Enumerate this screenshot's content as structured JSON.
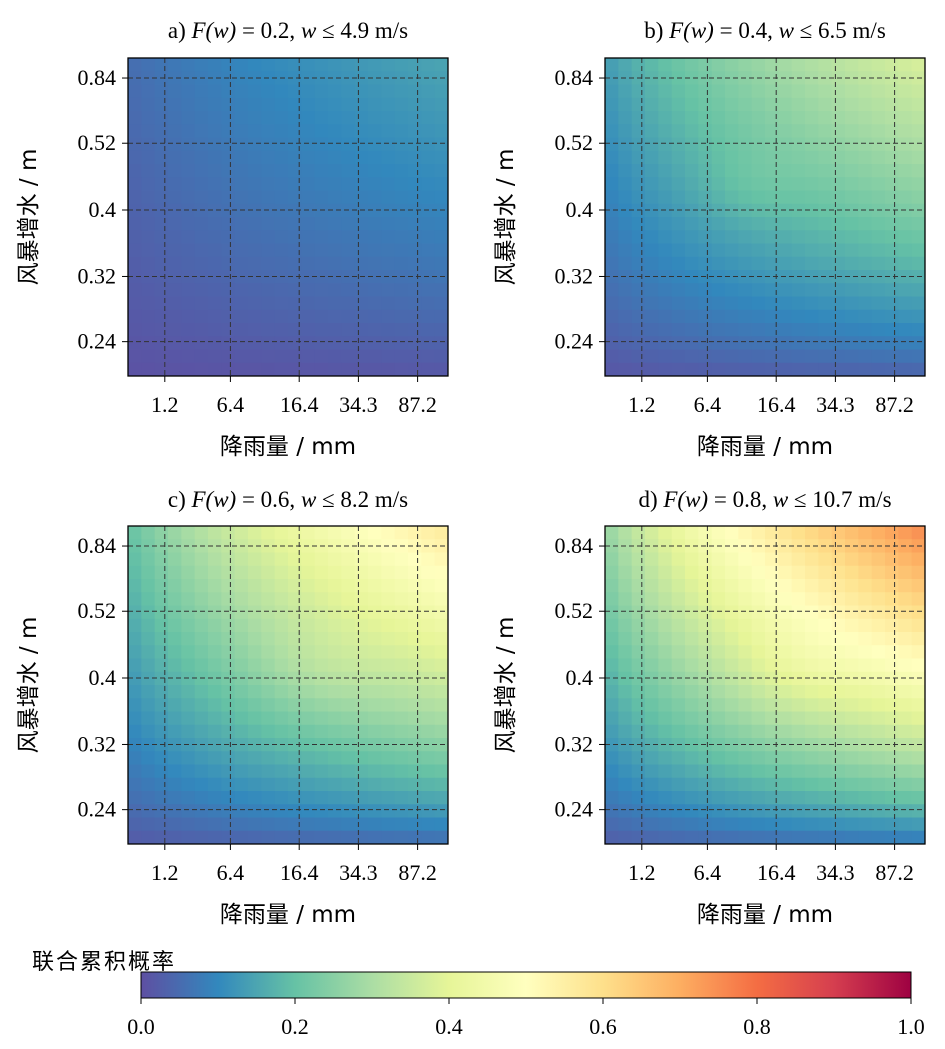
{
  "colorbar": {
    "label": "联合累积概率",
    "ticks": [
      "0.0",
      "0.2",
      "0.4",
      "0.6",
      "0.8",
      "1.0"
    ],
    "range": [
      0,
      1
    ],
    "colormap": [
      "#5e4fa2",
      "#3288bd",
      "#66c2a5",
      "#abdda4",
      "#e6f598",
      "#ffffbf",
      "#fee08b",
      "#fdae61",
      "#f46d43",
      "#d53e4f",
      "#9e0142"
    ]
  },
  "chart_data": [
    {
      "type": "heatmap",
      "panel": "a)",
      "title": "a) F(w) = 0.2, w ≤ 4.9 m/s",
      "title_parts": {
        "prefix": "a) ",
        "fw": "F(w)",
        "eq": " = 0.2, ",
        "w": "w",
        "rest": " ≤ 4.9 m/s"
      },
      "xlabel": "降雨量 / mm",
      "ylabel": "风暴增水 / m",
      "xticks": [
        "1.2",
        "6.4",
        "16.4",
        "34.3",
        "87.2"
      ],
      "yticks": [
        "0.24",
        "0.32",
        "0.4",
        "0.52",
        "0.84"
      ],
      "max_value": 0.15,
      "grid": true
    },
    {
      "type": "heatmap",
      "panel": "b)",
      "title": "b) F(w) = 0.4, w ≤ 6.5 m/s",
      "title_parts": {
        "prefix": "b) ",
        "fw": "F(w)",
        "eq": " = 0.4, ",
        "w": "w",
        "rest": " ≤ 6.5 m/s"
      },
      "xlabel": "降雨量 / mm",
      "ylabel": "风暴增水 / m",
      "xticks": [
        "1.2",
        "6.4",
        "16.4",
        "34.3",
        "87.2"
      ],
      "yticks": [
        "0.24",
        "0.32",
        "0.4",
        "0.52",
        "0.84"
      ],
      "max_value": 0.38,
      "grid": true
    },
    {
      "type": "heatmap",
      "panel": "c)",
      "title": "c) F(w) = 0.6, w ≤ 8.2 m/s",
      "title_parts": {
        "prefix": "c) ",
        "fw": "F(w)",
        "eq": " = 0.6, ",
        "w": "w",
        "rest": " ≤ 8.2 m/s"
      },
      "xlabel": "降雨量 / mm",
      "ylabel": "风暴增水 / m",
      "xticks": [
        "1.2",
        "6.4",
        "16.4",
        "34.3",
        "87.2"
      ],
      "yticks": [
        "0.24",
        "0.32",
        "0.4",
        "0.52",
        "0.84"
      ],
      "max_value": 0.57,
      "grid": true
    },
    {
      "type": "heatmap",
      "panel": "d)",
      "title": "d) F(w) = 0.8, w ≤ 10.7 m/s",
      "title_parts": {
        "prefix": "d) ",
        "fw": "F(w)",
        "eq": " = 0.8, ",
        "w": "w",
        "rest": " ≤ 10.7 m/s"
      },
      "xlabel": "降雨量 / mm",
      "ylabel": "风暴增水 / m",
      "xticks": [
        "1.2",
        "6.4",
        "16.4",
        "34.3",
        "87.2"
      ],
      "yticks": [
        "0.24",
        "0.32",
        "0.4",
        "0.52",
        "0.84"
      ],
      "max_value": 0.76,
      "grid": true
    }
  ]
}
